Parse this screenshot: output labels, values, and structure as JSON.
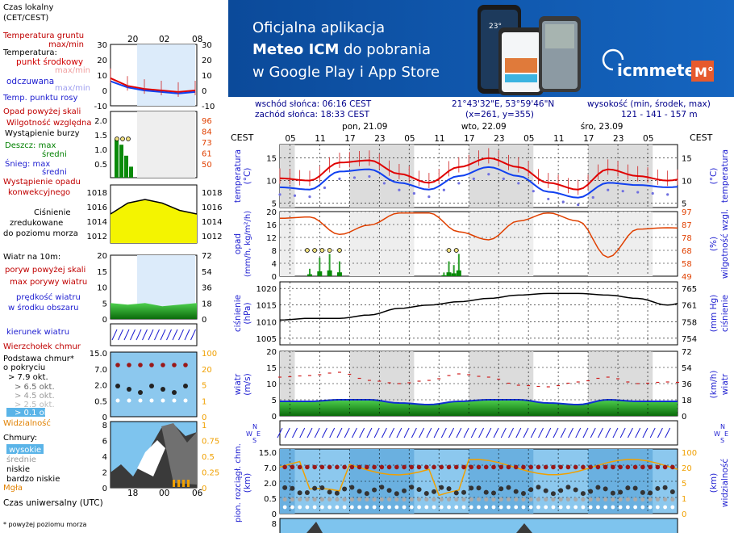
{
  "legend_panel": {
    "time_header": "Czas lokalny\n(CET/CEST)",
    "time_header_line1": "Czas lokalny",
    "time_header_line2": "(CET/CEST)",
    "time_ticks": [
      "20",
      "02",
      "08"
    ],
    "utc_ticks": [
      "18",
      "00",
      "06"
    ],
    "utc_label": "Czas uniwersalny (UTC)",
    "footnote": "* powyżej poziomu morza",
    "temp": {
      "ground_label_1": "Temperatura gruntu",
      "ground_label_2": "max/min",
      "temperature_label": "Temperatura:",
      "mid_point": "punkt środkowy",
      "maxmin_faded": "max/min",
      "feels": "odczuwana",
      "feels_faded": "max/min",
      "dew": "Temp. punktu rosy",
      "axis": [
        "30",
        "20",
        "10",
        "0",
        "-10"
      ]
    },
    "precip": {
      "above_scale": "Opad powyżej skali",
      "humidity": "Wilgotność względna",
      "storm": "Wystąpienie burzy",
      "rain_max": "Deszcz: max",
      "rain_mid": "średni",
      "snow_max": "Śnieg: max",
      "snow_mid": "średni",
      "convective_1": "Wystąpienie opadu",
      "convective_2": "konwekcyjnego",
      "axis_left": [
        "2.0",
        "1.5",
        "1.0",
        "0.5"
      ],
      "axis_right": [
        "96",
        "84",
        "73",
        "61",
        "50"
      ]
    },
    "pressure": {
      "label_1": "Ciśnienie",
      "label_2": "zredukowane",
      "label_3": "do poziomu morza",
      "axis": [
        "1018",
        "1016",
        "1014",
        "1012"
      ]
    },
    "wind": {
      "label": "Wiatr na 10m:",
      "gust_above": "poryw powyżej skali",
      "gust_max": "max porywy wiatru",
      "speed_1": "prędkość wiatru",
      "speed_2": "w środku obszaru",
      "axis_left": [
        "20",
        "15",
        "10",
        "5",
        "0"
      ],
      "axis_right": [
        "72",
        "54",
        "36",
        "18",
        "0"
      ]
    },
    "direction": {
      "label": "kierunek wiatru"
    },
    "clouds_base": {
      "top": "Wierzchołek chmur",
      "base_1": "Podstawa chmur*",
      "base_2": "o pokryciu",
      "o79": "> 7.9 okt.",
      "o65": "> 6.5 okt.",
      "o45": "> 4.5 okt.",
      "o25": "> 2.5 okt.",
      "o01": "> 0.1 okt.",
      "visibility": "Widzialność",
      "axis_left": [
        "15.0",
        "7.0",
        "2.0",
        "0.5",
        "0"
      ],
      "axis_right": [
        "100",
        "20",
        "5",
        "1",
        "0"
      ]
    },
    "clouds": {
      "label": "Chmury:",
      "high": "wysokie",
      "mid": "średnie",
      "low": "niskie",
      "very_low": "bardzo niskie",
      "fog": "Mgła",
      "axis_left": [
        "8",
        "6",
        "4",
        "2",
        "0"
      ],
      "axis_right": [
        "1",
        "0.75",
        "0.5",
        "0.25",
        "0"
      ]
    }
  },
  "banner": {
    "line1": "Oficjalna aplikacja",
    "line2_bold": "Meteo ICM",
    "line2_rest": " do pobrania",
    "line3": "w Google Play i App Store",
    "logo_text": "icmmeteo",
    "logo_badge": "M°",
    "phone_temp": "23°",
    "colors": {
      "background": "#0d4ea0",
      "accent": "#ffffff"
    }
  },
  "info": {
    "sunrise": "wschód słońca: 06:16 CEST",
    "sunset": "zachód słońca: 18:33 CEST",
    "coords": "21°43'32\"E, 53°59'46\"N",
    "grid": "(x=261, y=355)",
    "height_label": "wysokość (min, środek, max)",
    "height_values": "121 - 141 - 157 m"
  },
  "main_chart": {
    "tz_left": "CEST",
    "tz_right": "CEST",
    "days": [
      "pon, 21.09",
      "wto, 22.09",
      "śro, 23.09"
    ],
    "hour_ticks": [
      "05",
      "11",
      "17",
      "23",
      "05",
      "11",
      "17",
      "23",
      "05",
      "11",
      "17",
      "23",
      "05"
    ],
    "temperature": {
      "label_left_1": "temperatura",
      "label_left_2": "(°C)",
      "label_right_1": "(°C)",
      "label_right_2": "temperatura",
      "axis": [
        "15",
        "10",
        "5"
      ]
    },
    "precip": {
      "label_left_1": "opad",
      "label_left_2": "(mm/h, kg/m²/h)",
      "label_right_1": "(%)",
      "label_right_2": "wilgotność wzgl.",
      "axis_left": [
        "20",
        "16",
        "12",
        "8",
        "4",
        "0"
      ],
      "axis_right": [
        "97",
        "87",
        "78",
        "68",
        "58",
        "49"
      ]
    },
    "pressure": {
      "label_left_1": "ciśnienie",
      "label_left_2": "(hPa)",
      "label_right_1": "(mm Hg)",
      "label_right_2": "ciśnienie",
      "axis_left": [
        "1020",
        "1015",
        "1010",
        "1005"
      ],
      "axis_right": [
        "765",
        "761",
        "758",
        "754"
      ]
    },
    "wind": {
      "label_left_1": "wiatr",
      "label_left_2": "(m/s)",
      "label_right_1": "(km/h)",
      "label_right_2": "wiatr",
      "axis_left": [
        "20",
        "15",
        "10",
        "5",
        "0"
      ],
      "axis_right": [
        "72",
        "54",
        "36",
        "18",
        "0"
      ]
    },
    "clouds": {
      "label_left_1": "pion. rozciągł. chm.",
      "label_left_2": "(km)",
      "label_right_1": "(km)",
      "label_right_2": "widzialność",
      "axis_left": [
        "15.0",
        "7.0",
        "2.0",
        "0.5",
        "0"
      ],
      "axis_right": [
        "100",
        "20",
        "5",
        "1",
        "0"
      ]
    },
    "cloud_cover_axis": [
      "8"
    ],
    "compass": {
      "n": "N",
      "w": "W",
      "e": "E",
      "s": "S"
    }
  },
  "chart_data": {
    "type": "line",
    "x_hours": [
      0,
      6,
      12,
      18,
      24,
      30,
      36,
      42,
      48,
      54,
      60,
      66,
      72,
      78
    ],
    "series": [
      {
        "name": "temperatura",
        "values": [
          10.5,
          10,
          14,
          14.5,
          11.5,
          9.5,
          13,
          15,
          13,
          9.5,
          8,
          12.5,
          11,
          10
        ]
      },
      {
        "name": "odczuwana",
        "values": [
          8.5,
          8,
          12,
          12.5,
          9.5,
          8,
          11,
          13,
          11,
          7.5,
          6.2,
          9.5,
          9,
          8.5
        ]
      },
      {
        "name": "wilgotność wzgl.",
        "values": [
          92,
          93,
          80,
          87,
          96,
          96,
          82,
          76,
          90,
          96,
          90,
          63,
          84,
          85
        ]
      },
      {
        "name": "ciśnienie",
        "values": [
          1010.5,
          1011,
          1011,
          1012,
          1014,
          1015,
          1016,
          1017,
          1018,
          1018.5,
          1018.5,
          1018,
          1017,
          1015
        ]
      },
      {
        "name": "prędkość wiatru",
        "values": [
          4.5,
          4.5,
          5,
          5,
          4,
          3.5,
          4.5,
          5,
          5,
          4,
          3.5,
          5,
          4.5,
          4.5
        ]
      },
      {
        "name": "max porywy wiatru",
        "values": [
          12,
          12.5,
          13.5,
          11,
          10,
          11,
          13,
          12,
          9.5,
          9,
          10.5,
          12,
          10,
          10.5
        ]
      }
    ],
    "rain_bars": [
      {
        "hour": 6,
        "value": 1.0
      },
      {
        "hour": 8,
        "value": 2.5
      },
      {
        "hour": 10,
        "value": 3.0
      },
      {
        "hour": 12,
        "value": 2.0
      },
      {
        "hour": 33,
        "value": 0.5
      },
      {
        "hour": 34,
        "value": 2.0
      },
      {
        "hour": 35,
        "value": 1.5
      },
      {
        "hour": 36,
        "value": 3.0
      }
    ],
    "temp_ylim": [
      4,
      18
    ],
    "precip_ylim": [
      0,
      20
    ],
    "humidity_ylim": [
      49,
      97
    ],
    "pressure_ylim": [
      1003,
      1022
    ],
    "wind_ylim": [
      0,
      20
    ]
  },
  "legend_chart_data": {
    "temp_series": [
      {
        "name": "temperatura",
        "values": [
          8,
          3,
          1,
          0,
          -1,
          0
        ]
      },
      {
        "name": "odczuwana",
        "values": [
          6,
          2,
          0,
          -1,
          -2,
          -1
        ]
      }
    ],
    "pressure_values": [
      1015,
      1016.5,
      1017,
      1016.5,
      1015.5,
      1015
    ],
    "wind_speed": [
      5,
      4.5,
      5,
      4,
      4.5,
      5
    ],
    "rain_bars": [
      1.4,
      1.2,
      0.8,
      0.4
    ]
  }
}
